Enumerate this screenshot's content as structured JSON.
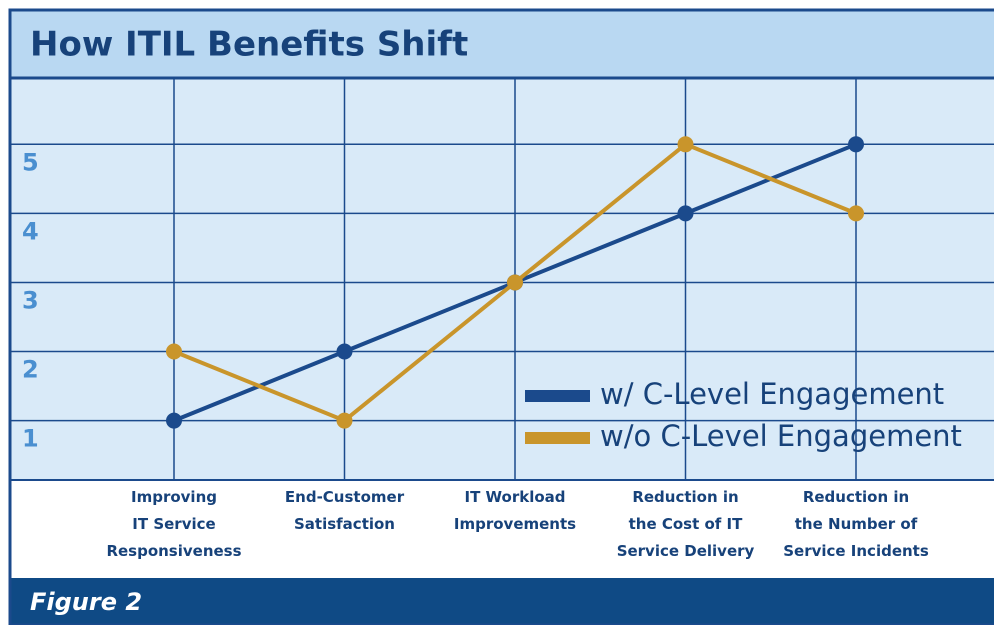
{
  "chart_data": {
    "type": "line",
    "title": "How ITIL Benefits Shift",
    "caption": "Figure 2",
    "categories": [
      [
        "Improving",
        "IT Service",
        "Responsiveness"
      ],
      [
        "End-Customer",
        "Satisfaction"
      ],
      [
        "IT Workload",
        "Improvements"
      ],
      [
        "Reduction in",
        "the Cost of IT",
        "Service Delivery"
      ],
      [
        "Reduction in",
        "the Number of",
        "Service Incidents"
      ]
    ],
    "series": [
      {
        "name": "w/ C-Level Engagement",
        "color": "#1b4a8c",
        "values": [
          1,
          2,
          3,
          4,
          5
        ]
      },
      {
        "name": "w/o C-Level Engagement",
        "color": "#c9952b",
        "values": [
          2,
          1,
          3,
          5,
          4
        ]
      }
    ],
    "ylim": [
      0.14,
      5.96
    ],
    "yticks": [
      1,
      2,
      3,
      4,
      5
    ],
    "grid": true,
    "legend": "lower right"
  }
}
